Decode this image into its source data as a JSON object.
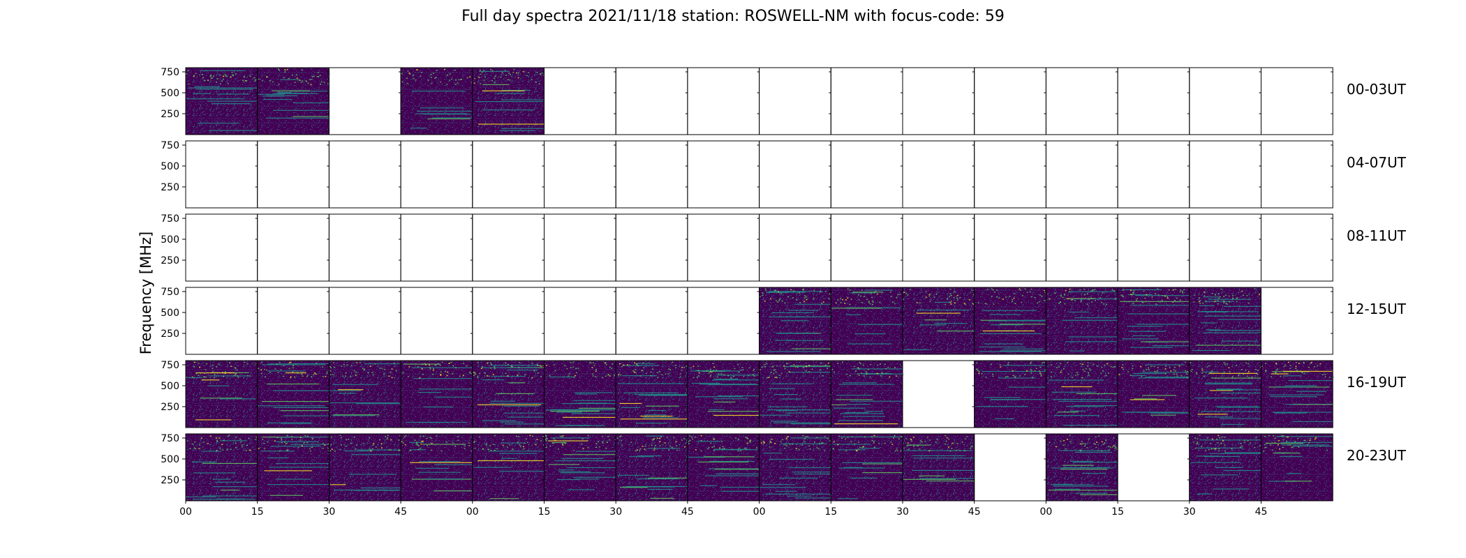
{
  "chart_data": {
    "type": "heatmap",
    "title": "Full day spectra 2021/11/18 station: ROSWELL-NM with focus-code: 59",
    "ylabel": "Frequency [MHz]",
    "y_ticks": [
      "250",
      "500",
      "750"
    ],
    "y_tick_values": [
      250,
      500,
      750
    ],
    "ylim": [
      0,
      800
    ],
    "x_tick_labels": [
      "00",
      "15",
      "30",
      "45",
      "00",
      "15",
      "30",
      "45",
      "00",
      "15",
      "30",
      "45",
      "00",
      "15",
      "30",
      "45"
    ],
    "rows": [
      {
        "label": "00-03UT",
        "panels": [
          1,
          1,
          0,
          1,
          1,
          0,
          0,
          0,
          0,
          0,
          0,
          0,
          0,
          0,
          0,
          0
        ]
      },
      {
        "label": "04-07UT",
        "panels": [
          0,
          0,
          0,
          0,
          0,
          0,
          0,
          0,
          0,
          0,
          0,
          0,
          0,
          0,
          0,
          0
        ]
      },
      {
        "label": "08-11UT",
        "panels": [
          0,
          0,
          0,
          0,
          0,
          0,
          0,
          0,
          0,
          0,
          0,
          0,
          0,
          0,
          0,
          0
        ]
      },
      {
        "label": "12-15UT",
        "panels": [
          0,
          0,
          0,
          0,
          0,
          0,
          0,
          0,
          1,
          1,
          1,
          1,
          1,
          1,
          1,
          0
        ]
      },
      {
        "label": "16-19UT",
        "panels": [
          1,
          1,
          1,
          1,
          1,
          1,
          1,
          1,
          1,
          1,
          0,
          1,
          1,
          1,
          1,
          1
        ]
      },
      {
        "label": "20-23UT",
        "panels": [
          1,
          1,
          1,
          1,
          1,
          1,
          1,
          1,
          1,
          1,
          1,
          0,
          1,
          0,
          1,
          1
        ]
      }
    ],
    "colormap": [
      "#440154",
      "#3b528b",
      "#21918c",
      "#5ec962",
      "#fde725"
    ]
  }
}
